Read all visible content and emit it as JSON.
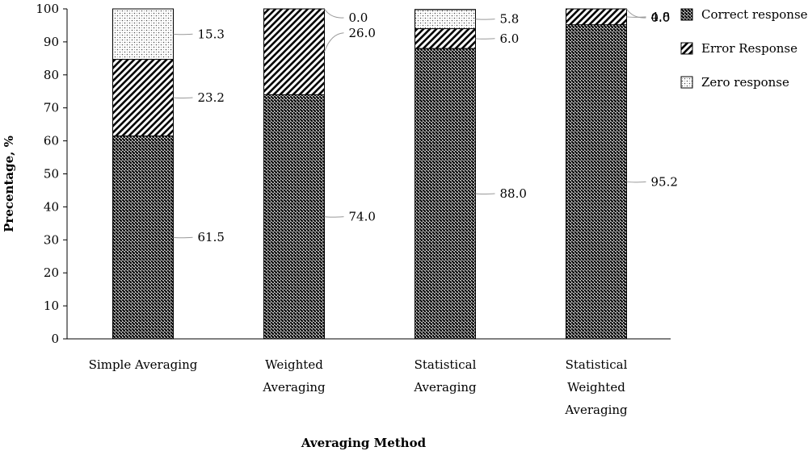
{
  "chart_data": {
    "type": "bar",
    "stacked": true,
    "title": "",
    "xlabel": "Averaging Method",
    "ylabel": "Precentage, %",
    "ylim": [
      0,
      100
    ],
    "yticks": [
      0,
      10,
      20,
      30,
      40,
      50,
      60,
      70,
      80,
      90,
      100
    ],
    "grid": false,
    "legend_position": "top-right",
    "categories": [
      [
        "Simple Averaging"
      ],
      [
        "Weighted",
        "Averaging"
      ],
      [
        "Statistical",
        "Averaging"
      ],
      [
        "Statistical",
        "Weighted",
        "Averaging"
      ]
    ],
    "series": [
      {
        "name": "Correct response",
        "pattern": "dense-crosshatch",
        "values": [
          61.5,
          74.0,
          88.0,
          95.2
        ],
        "labels": [
          "61.5",
          "74.0",
          "88.0",
          "95.2"
        ]
      },
      {
        "name": "Error Response",
        "pattern": "diagonal-stripes",
        "values": [
          23.2,
          26.0,
          6.0,
          4.8
        ],
        "labels": [
          "23.2",
          "26.0",
          "6.0",
          "4.8"
        ]
      },
      {
        "name": "Zero response",
        "pattern": "dots",
        "values": [
          15.3,
          0.0,
          5.8,
          0.0
        ],
        "labels": [
          "15.3",
          "0.0",
          "5.8",
          "0.0"
        ]
      }
    ]
  }
}
